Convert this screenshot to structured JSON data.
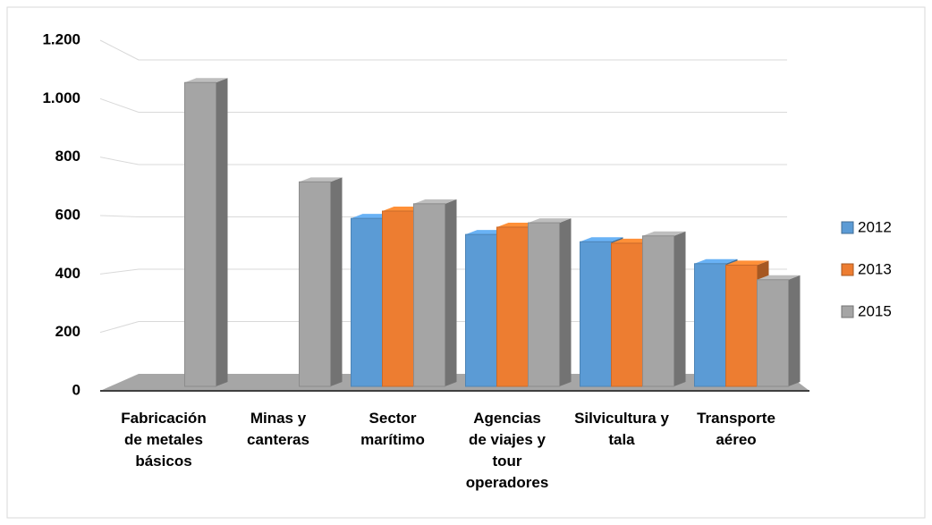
{
  "chart_data": {
    "type": "bar3d",
    "categories": [
      "Fabricación de metales básicos",
      "Minas y canteras",
      "Sector marítimo",
      "Agencias de viajes y tour operadores",
      "Silvicultura y tala",
      "Transporte aéreo"
    ],
    "series": [
      {
        "name": "2012",
        "color": "#5b9bd5",
        "values": [
          null,
          null,
          575,
          520,
          495,
          420
        ]
      },
      {
        "name": "2013",
        "color": "#ed7d31",
        "values": [
          null,
          null,
          600,
          545,
          490,
          415
        ]
      },
      {
        "name": "2015",
        "color": "#a5a5a5",
        "values": [
          1040,
          700,
          625,
          560,
          515,
          365
        ]
      }
    ],
    "ylim": [
      0,
      1200
    ],
    "yticks": [
      0,
      200,
      400,
      600,
      800,
      {
        "value": 1000,
        "label": "1.000"
      },
      {
        "value": 1200,
        "label": "1.200"
      }
    ],
    "grid": true,
    "legend": "right"
  }
}
